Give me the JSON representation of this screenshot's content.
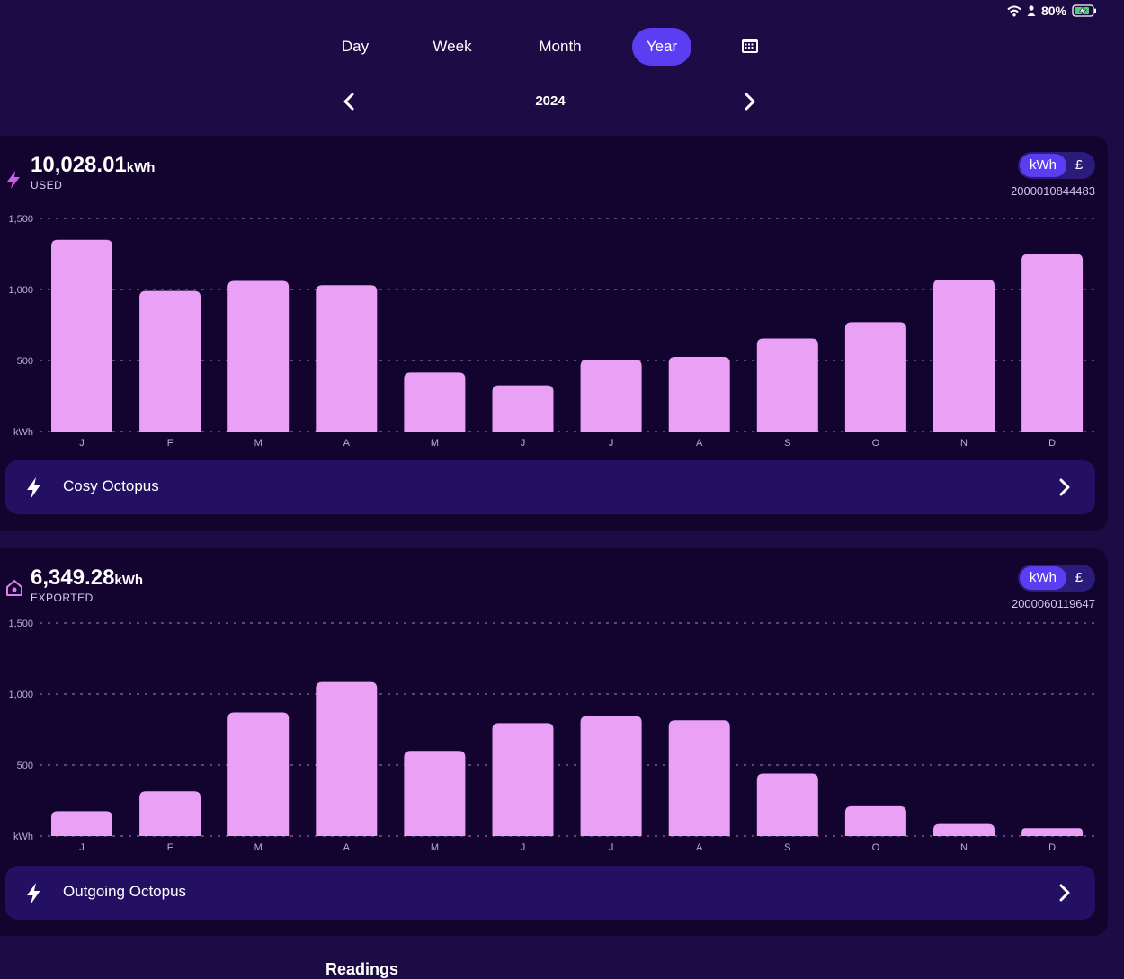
{
  "status": {
    "battery_text": "80%",
    "icons": [
      "wifi-icon",
      "person-icon",
      "battery-charging-icon"
    ]
  },
  "tabs": [
    {
      "label": "Day",
      "active": false
    },
    {
      "label": "Week",
      "active": false
    },
    {
      "label": "Month",
      "active": false
    },
    {
      "label": "Year",
      "active": true
    }
  ],
  "calendar_icon": "calendar-icon",
  "period": {
    "label": "2024"
  },
  "colors": {
    "background": "#1c0b45",
    "card": "#12042f",
    "accent": "#5b3ef2",
    "bar": "#eaa0f5",
    "tariff_bg": "#231063"
  },
  "used": {
    "total": "10,028.01",
    "unit": "kWh",
    "label": "USED",
    "toggle": {
      "on": "kWh",
      "off": "£"
    },
    "meter": "2000010844483",
    "tariff": "Cosy Octopus"
  },
  "exported": {
    "total": "6,349.28",
    "unit": "kWh",
    "label": "EXPORTED",
    "toggle": {
      "on": "kWh",
      "off": "£"
    },
    "meter": "2000060119647",
    "tariff": "Outgoing Octopus"
  },
  "readings_label": "Readings",
  "chart_data": [
    {
      "type": "bar",
      "categories": [
        "J",
        "F",
        "M",
        "A",
        "M",
        "J",
        "J",
        "A",
        "S",
        "O",
        "N",
        "D"
      ],
      "values": [
        1350,
        990,
        1060,
        1030,
        415,
        325,
        505,
        525,
        655,
        770,
        1070,
        1250
      ],
      "ylim": [
        0,
        1500
      ],
      "y_ticks": [
        0,
        500,
        1000,
        1500
      ],
      "y_tick_labels": [
        "kWh",
        "500",
        "1,000",
        "1,500"
      ],
      "grid": true
    },
    {
      "type": "bar",
      "categories": [
        "J",
        "F",
        "M",
        "A",
        "M",
        "J",
        "J",
        "A",
        "S",
        "O",
        "N",
        "D"
      ],
      "values": [
        175,
        315,
        870,
        1085,
        600,
        795,
        845,
        815,
        440,
        210,
        85,
        55
      ],
      "ylim": [
        0,
        1500
      ],
      "y_ticks": [
        0,
        500,
        1000,
        1500
      ],
      "y_tick_labels": [
        "kWh",
        "500",
        "1,000",
        "1,500"
      ],
      "grid": true
    }
  ]
}
